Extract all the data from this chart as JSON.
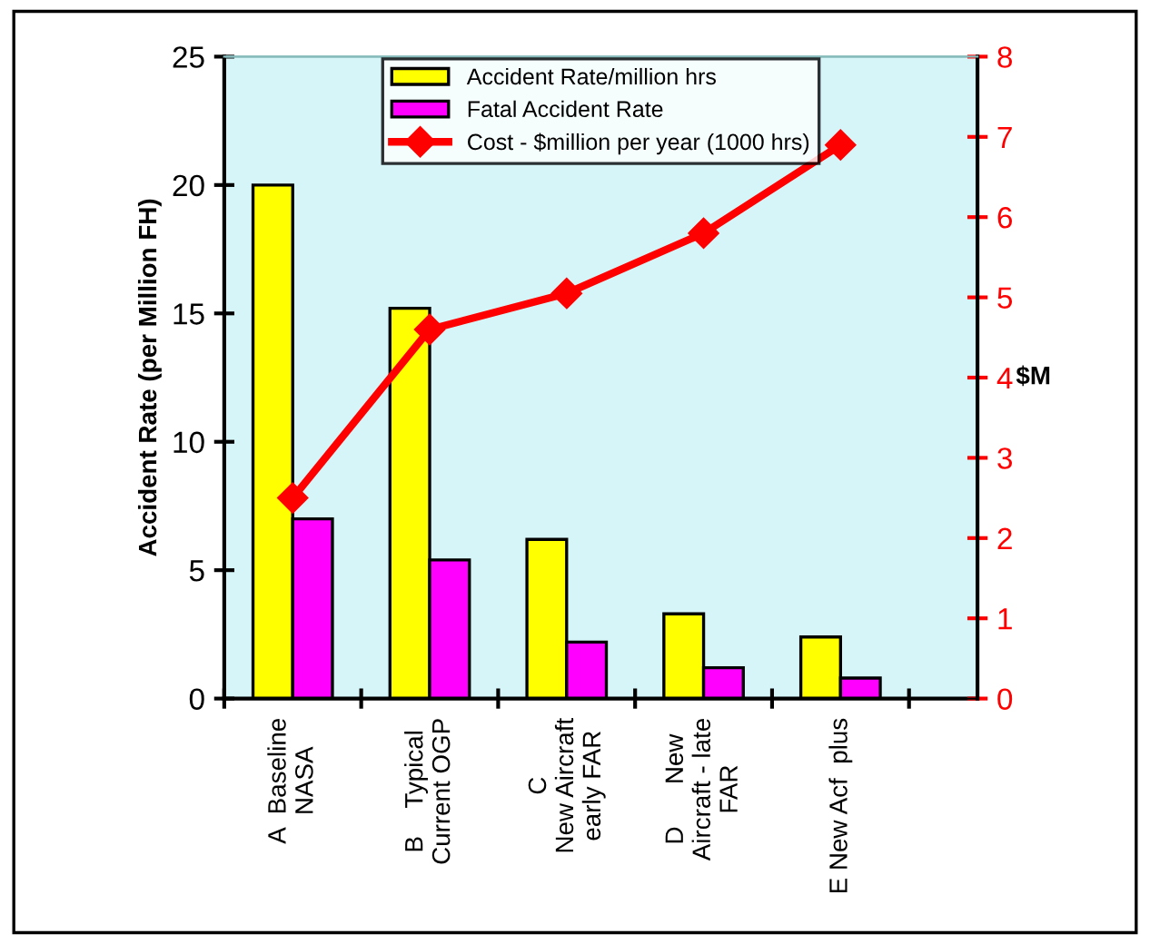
{
  "chart_data": {
    "type": "bar",
    "ylabel": "Accident Rate (per Million FH)",
    "y2label": "$M",
    "categories": [
      "A  Baseline\nNASA",
      "B    Typical\nCurrent OGP",
      "C\nNew Aircraft\nearly FAR",
      "D      New\nAircraft - late\nFAR",
      "E New Acf  plus"
    ],
    "series": [
      {
        "name": "Accident Rate/million hrs",
        "color": "#ffff00",
        "values": [
          20,
          15.2,
          6.2,
          3.3,
          2.4
        ]
      },
      {
        "name": "Fatal Accident Rate",
        "color": "#ff00ff",
        "values": [
          7.0,
          5.4,
          2.2,
          1.2,
          0.8
        ]
      },
      {
        "name": "Cost - $million per year (1000 hrs)",
        "color": "#ff0000",
        "type": "line",
        "axis": "y2",
        "marker": "diamond",
        "values": [
          2.5,
          4.6,
          5.05,
          5.8,
          6.9
        ]
      }
    ],
    "ylim": [
      0,
      25
    ],
    "yticks": [
      0,
      5,
      10,
      15,
      20,
      25
    ],
    "y2lim": [
      0,
      8
    ],
    "y2ticks": [
      0,
      1,
      2,
      3,
      4,
      5,
      6,
      7,
      8
    ],
    "grid": false,
    "legend": "top"
  }
}
